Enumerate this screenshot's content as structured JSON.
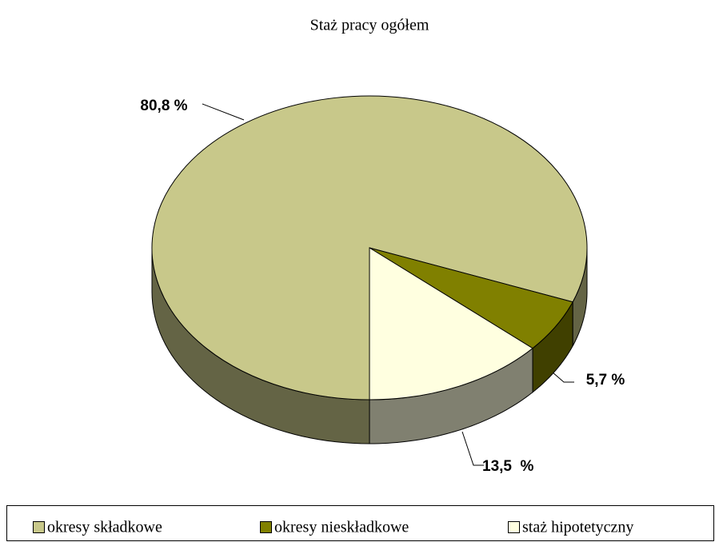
{
  "chart_data": {
    "type": "pie3d",
    "title": "Staż pracy ogółem",
    "categories": [
      "okresy składkowe",
      "okresy nieskładkowe",
      "staż hipotetyczny"
    ],
    "values": [
      80.8,
      5.7,
      13.5
    ],
    "value_labels": [
      "80,8 %",
      "5,7 %",
      "13,5  %"
    ],
    "colors": [
      "#c8c88a",
      "#808000",
      "#ffffe0"
    ],
    "legend": "bottom"
  }
}
